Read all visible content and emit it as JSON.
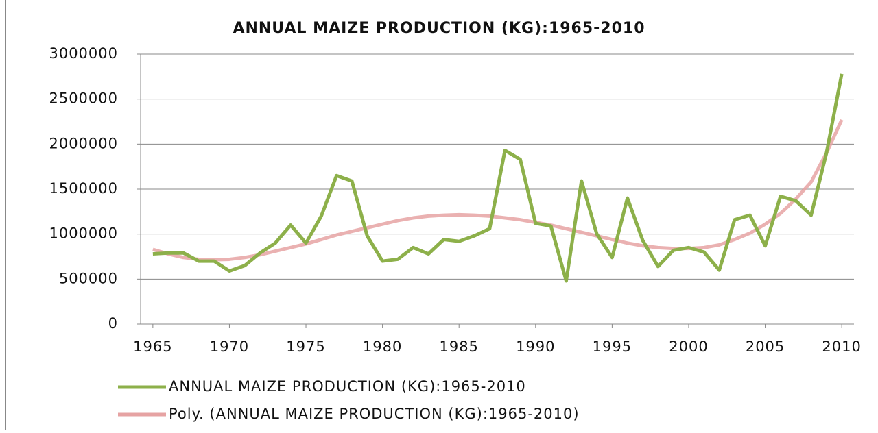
{
  "chart_data": {
    "type": "line",
    "title": "ANNUAL MAIZE PRODUCTION (KG):1965-2010",
    "x": [
      1965,
      1966,
      1967,
      1968,
      1969,
      1970,
      1971,
      1972,
      1973,
      1974,
      1975,
      1976,
      1977,
      1978,
      1979,
      1980,
      1981,
      1982,
      1983,
      1984,
      1985,
      1986,
      1987,
      1988,
      1989,
      1990,
      1991,
      1992,
      1993,
      1994,
      1995,
      1996,
      1997,
      1998,
      1999,
      2000,
      2001,
      2002,
      2003,
      2004,
      2005,
      2006,
      2007,
      2008,
      2009,
      2010
    ],
    "series": [
      {
        "name": "ANNUAL MAIZE PRODUCTION (KG):1965-2010",
        "color": "#8db04a",
        "width": 5,
        "values": [
          780000,
          790000,
          790000,
          700000,
          700000,
          590000,
          650000,
          790000,
          900000,
          1100000,
          900000,
          1200000,
          1650000,
          1590000,
          980000,
          700000,
          720000,
          850000,
          780000,
          940000,
          920000,
          980000,
          1060000,
          1930000,
          1830000,
          1120000,
          1090000,
          480000,
          1590000,
          1000000,
          740000,
          1400000,
          930000,
          640000,
          820000,
          850000,
          800000,
          600000,
          1160000,
          1210000,
          870000,
          1420000,
          1370000,
          1210000,
          1900000,
          2780000
        ]
      },
      {
        "name": "Poly. (ANNUAL MAIZE PRODUCTION (KG):1965-2010)",
        "color": "#e6a3a3",
        "width": 5,
        "values": [
          830000,
          780000,
          740000,
          720000,
          715000,
          720000,
          740000,
          770000,
          810000,
          850000,
          890000,
          940000,
          990000,
          1030000,
          1070000,
          1110000,
          1150000,
          1180000,
          1200000,
          1210000,
          1215000,
          1210000,
          1200000,
          1180000,
          1160000,
          1130000,
          1100000,
          1060000,
          1020000,
          980000,
          940000,
          900000,
          870000,
          850000,
          840000,
          840000,
          850000,
          880000,
          940000,
          1010000,
          1110000,
          1230000,
          1390000,
          1580000,
          1900000,
          2270000
        ]
      }
    ],
    "xlim": [
      1964.2,
      2010.8
    ],
    "xticks": [
      1965,
      1970,
      1975,
      1980,
      1985,
      1990,
      1995,
      2000,
      2005,
      2010
    ],
    "ylim": [
      0,
      3000000
    ],
    "yticks": [
      0,
      500000,
      1000000,
      1500000,
      2000000,
      2500000,
      3000000
    ],
    "grid": true
  }
}
